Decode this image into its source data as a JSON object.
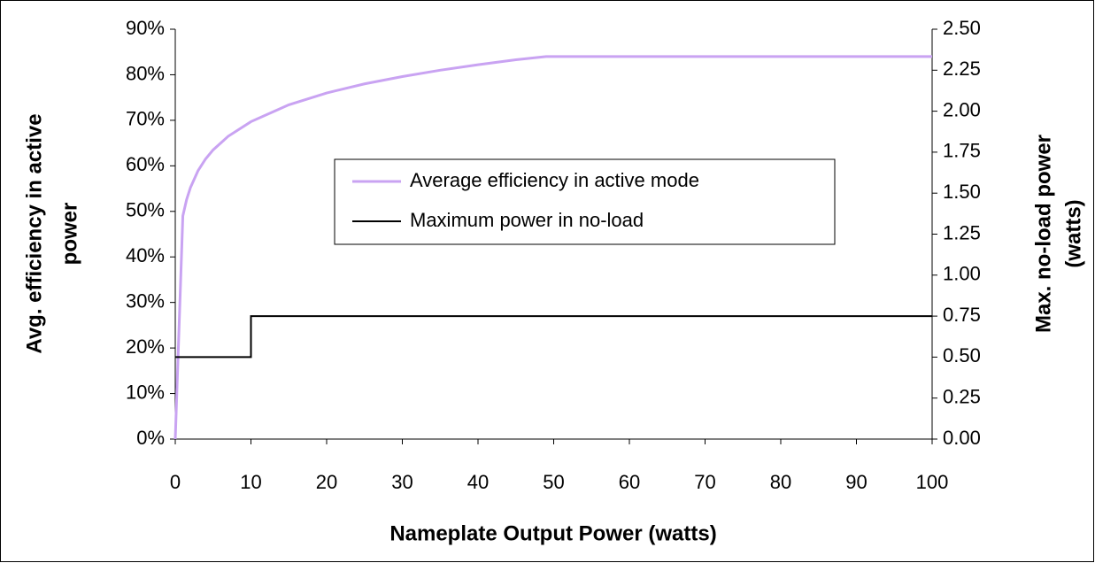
{
  "chart_data": {
    "type": "line",
    "xlabel": "Nameplate Output Power (watts)",
    "ylabel": [
      "Avg. efficiency in active",
      "power"
    ],
    "y2label": [
      "Max. no-load power",
      "(watts)"
    ],
    "xlim": [
      0,
      100
    ],
    "xticks": [
      0,
      10,
      20,
      30,
      40,
      50,
      60,
      70,
      80,
      90,
      100
    ],
    "ylim": [
      0,
      90
    ],
    "yticks": [
      {
        "value": 0,
        "label": "0%"
      },
      {
        "value": 10,
        "label": "10%"
      },
      {
        "value": 20,
        "label": "20%"
      },
      {
        "value": 30,
        "label": "30%"
      },
      {
        "value": 40,
        "label": "40%"
      },
      {
        "value": 50,
        "label": "50%"
      },
      {
        "value": 60,
        "label": "60%"
      },
      {
        "value": 70,
        "label": "70%"
      },
      {
        "value": 80,
        "label": "80%"
      },
      {
        "value": 90,
        "label": "90%"
      }
    ],
    "y2lim": [
      0,
      2.5
    ],
    "y2ticks": [
      {
        "value": 0,
        "label": "0.00"
      },
      {
        "value": 0.25,
        "label": "0.25"
      },
      {
        "value": 0.5,
        "label": "0.50"
      },
      {
        "value": 0.75,
        "label": "0.75"
      },
      {
        "value": 1,
        "label": "1.00"
      },
      {
        "value": 1.25,
        "label": "1.25"
      },
      {
        "value": 1.5,
        "label": "1.50"
      },
      {
        "value": 1.75,
        "label": "1.75"
      },
      {
        "value": 2,
        "label": "2.00"
      },
      {
        "value": 2.25,
        "label": "2.25"
      },
      {
        "value": 2.5,
        "label": "2.50"
      }
    ],
    "legend": "center",
    "series": [
      {
        "name": "Average efficiency in active mode",
        "color": "#c9a3f2",
        "x": [
          0,
          0.25,
          0.5,
          0.75,
          1,
          1.5,
          2,
          3,
          4,
          5,
          7,
          10,
          15,
          20,
          25,
          30,
          35,
          40,
          45,
          49,
          100
        ],
        "values": [
          0,
          12.25,
          24.5,
          36.75,
          49,
          52.6,
          55.2,
          58.9,
          61.5,
          63.5,
          66.5,
          69.7,
          73.4,
          76.0,
          78.0,
          79.6,
          81.0,
          82.2,
          83.3,
          84.0,
          84.0
        ]
      },
      {
        "name": "Maximum power in no-load",
        "color": "#000000",
        "axis": "y2",
        "x": [
          0,
          10,
          10,
          100
        ],
        "values": [
          0.5,
          0.5,
          0.75,
          0.75
        ]
      }
    ]
  }
}
